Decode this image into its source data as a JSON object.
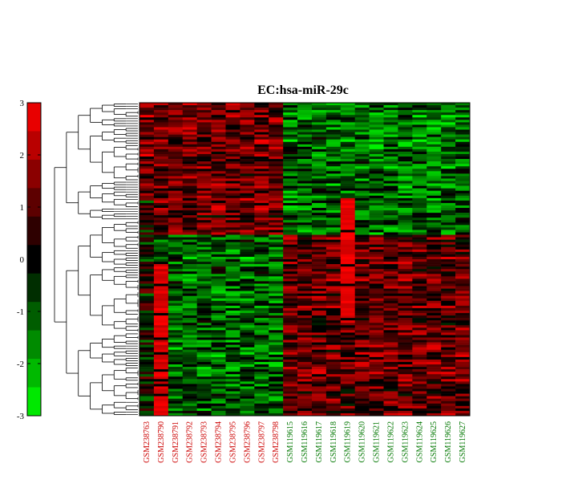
{
  "chart_data": {
    "type": "heatmap",
    "title": "EC:hsa-miR-29c",
    "colorbar": {
      "range": [
        -3,
        3
      ],
      "ticks": [
        3,
        2,
        1,
        0,
        -1,
        -2,
        -3
      ],
      "tick_labels": [
        "3",
        "2",
        "1",
        "0",
        "-1",
        "-2",
        "-3"
      ],
      "levels": 11,
      "low_color": "#00ff00",
      "mid_color": "#000000",
      "high_color": "#ff0000"
    },
    "columns": [
      {
        "name": "GSM238763",
        "group": "red"
      },
      {
        "name": "GSM238790",
        "group": "red"
      },
      {
        "name": "GSM238791",
        "group": "red"
      },
      {
        "name": "GSM238792",
        "group": "red"
      },
      {
        "name": "GSM238793",
        "group": "red"
      },
      {
        "name": "GSM238794",
        "group": "red"
      },
      {
        "name": "GSM238795",
        "group": "red"
      },
      {
        "name": "GSM238796",
        "group": "red"
      },
      {
        "name": "GSM238797",
        "group": "red"
      },
      {
        "name": "GSM238798",
        "group": "red"
      },
      {
        "name": "GSM119615",
        "group": "green"
      },
      {
        "name": "GSM119616",
        "group": "green"
      },
      {
        "name": "GSM119617",
        "group": "green"
      },
      {
        "name": "GSM119618",
        "group": "green"
      },
      {
        "name": "GSM119619",
        "group": "green"
      },
      {
        "name": "GSM119620",
        "group": "green"
      },
      {
        "name": "GSM119621",
        "group": "green"
      },
      {
        "name": "GSM119622",
        "group": "green"
      },
      {
        "name": "GSM119623",
        "group": "green"
      },
      {
        "name": "GSM119624",
        "group": "green"
      },
      {
        "name": "GSM119625",
        "group": "green"
      },
      {
        "name": "GSM119626",
        "group": "green"
      },
      {
        "name": "GSM119627",
        "group": "green"
      }
    ],
    "label_colors": {
      "red": "#cc0000",
      "green": "#007700"
    },
    "rows": 128,
    "row_dendrogram": true,
    "grid": false
  }
}
